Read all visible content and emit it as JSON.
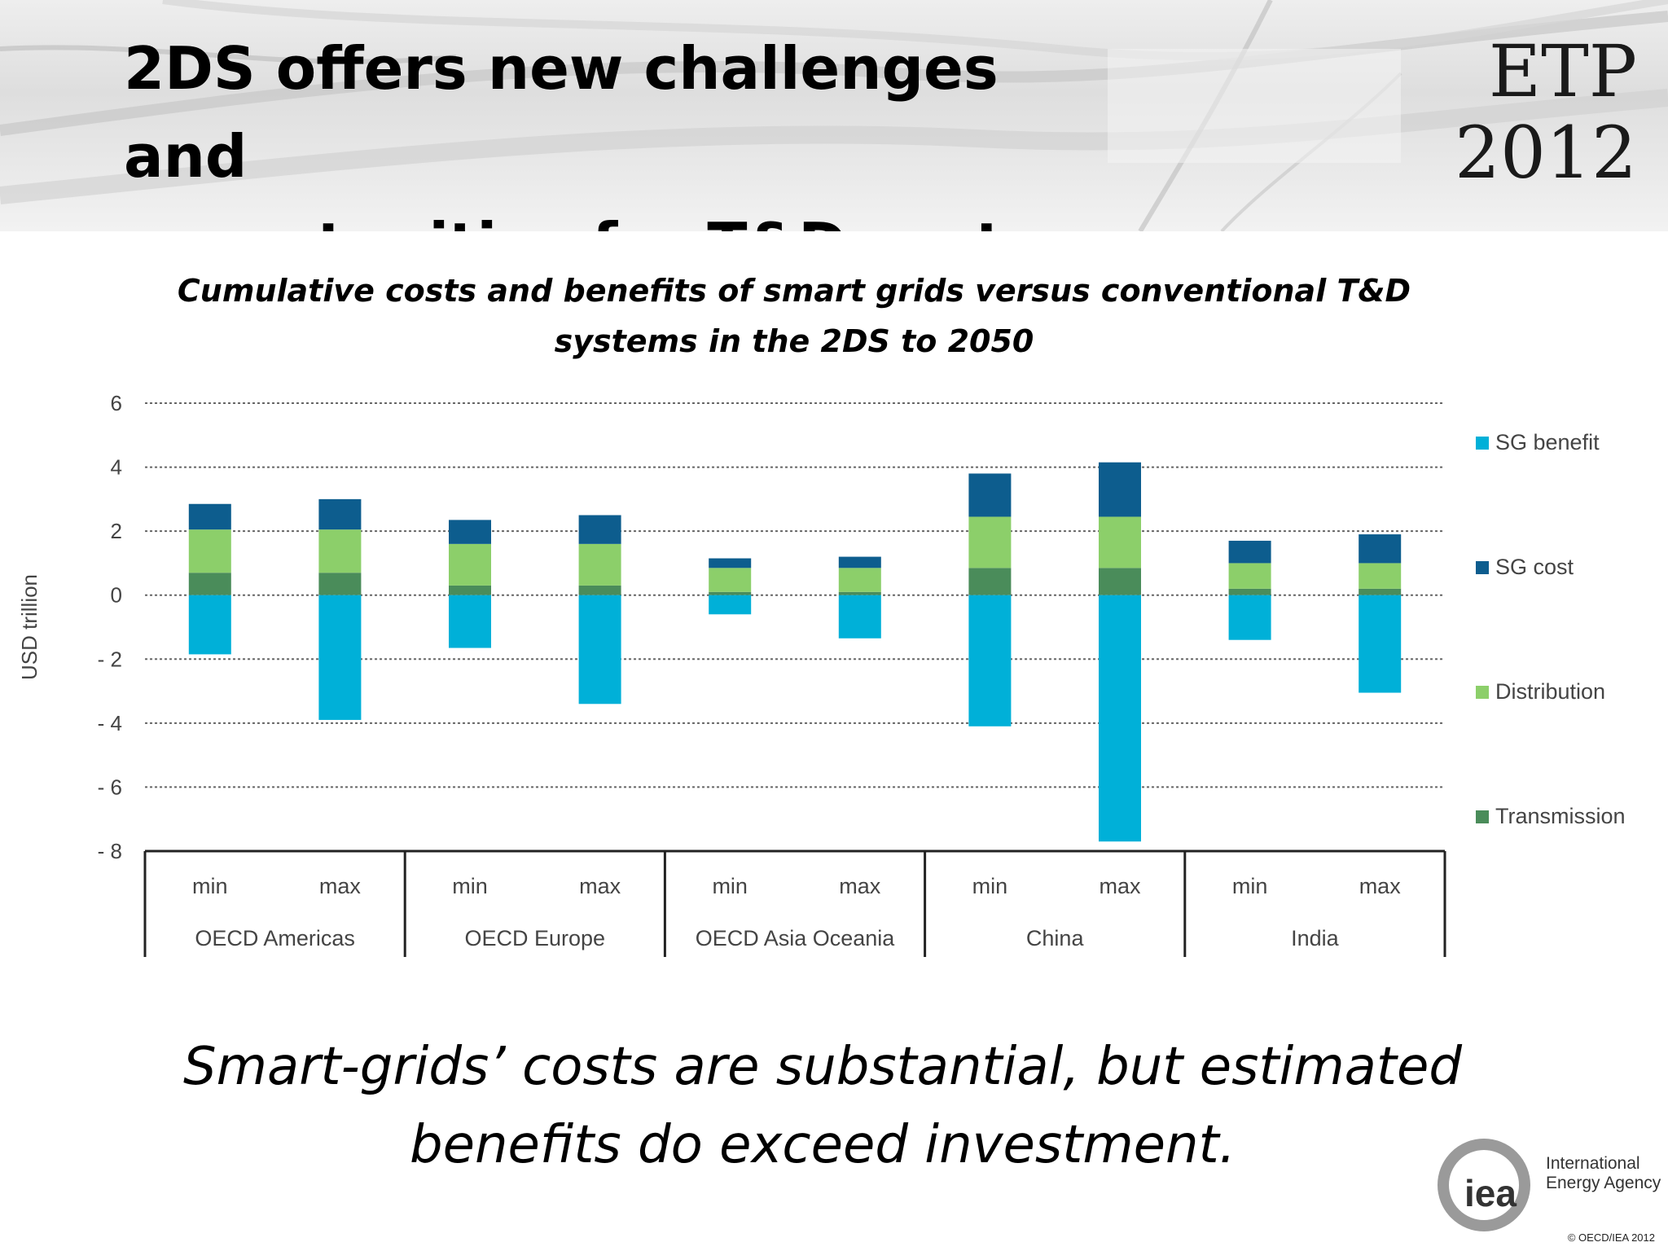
{
  "slide": {
    "title_line1": "2DS offers new challenges and",
    "title_line2": "opportunities for T&D systems",
    "logo_line1": "ETP",
    "logo_line2": "2012",
    "chart_title_line1": "Cumulative costs and benefits of smart grids versus conventional T&D",
    "chart_title_line2": "systems in the 2DS to 2050",
    "conclusion_line1": "Smart-grids’ costs are substantial, but estimated",
    "conclusion_line2": "benefits do exceed investment.",
    "iea_logo_text": "iea",
    "iea_name_line1": "International",
    "iea_name_line2": "Energy Agency",
    "copyright": "© OECD/IEA 2012"
  },
  "chart_data": {
    "type": "bar",
    "stacked": true,
    "ylabel": "USD trillion",
    "ylim": [
      -8,
      6
    ],
    "yticks": [
      6,
      4,
      2,
      0,
      -2,
      -4,
      -6,
      -8
    ],
    "ytick_labels": [
      "6",
      "4",
      "2",
      "0",
      "- 2",
      "- 4",
      "- 6",
      "- 8"
    ],
    "grid": "horizontal dotted",
    "legend_position": "right",
    "groups": [
      "OECD Americas",
      "OECD Europe",
      "OECD Asia Oceania",
      "China",
      "India"
    ],
    "categories": [
      "min",
      "max",
      "min",
      "max",
      "min",
      "max",
      "min",
      "max",
      "min",
      "max"
    ],
    "series": [
      {
        "name": "SG benefit",
        "color": "#00b0d8",
        "values": [
          -1.85,
          -3.9,
          -1.65,
          -3.4,
          -0.6,
          -1.35,
          -4.1,
          -7.7,
          -1.4,
          -3.05
        ]
      },
      {
        "name": "SG cost",
        "color": "#0d5d8e",
        "values": [
          0.8,
          0.95,
          0.75,
          0.9,
          0.3,
          0.35,
          1.35,
          1.7,
          0.7,
          0.9
        ]
      },
      {
        "name": "Distribution",
        "color": "#8ccf6a",
        "values": [
          1.35,
          1.35,
          1.3,
          1.3,
          0.75,
          0.75,
          1.6,
          1.6,
          0.8,
          0.8
        ]
      },
      {
        "name": "Transmission",
        "color": "#4a8c5a",
        "values": [
          0.7,
          0.7,
          0.3,
          0.3,
          0.1,
          0.1,
          0.85,
          0.85,
          0.2,
          0.2
        ]
      }
    ]
  }
}
